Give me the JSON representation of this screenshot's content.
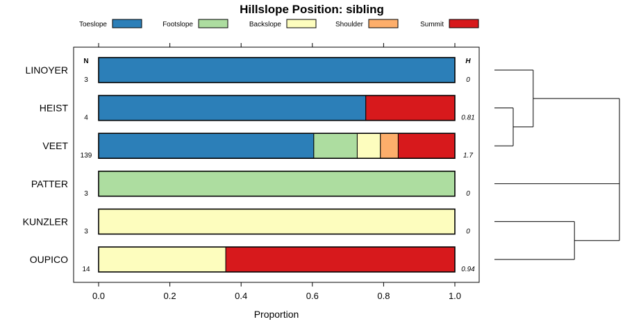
{
  "chart_data": {
    "type": "bar",
    "subtype": "stacked-horizontal-proportion",
    "title": "Hillslope Position: sibling",
    "xlabel": "Proportion",
    "ylabel": "",
    "xlim": [
      0,
      1
    ],
    "xticks": [
      "0.0",
      "0.2",
      "0.4",
      "0.6",
      "0.8",
      "1.0"
    ],
    "legend": [
      {
        "name": "Toeslope",
        "color": "#2c7fb8"
      },
      {
        "name": "Footslope",
        "color": "#addda0"
      },
      {
        "name": "Backslope",
        "color": "#fdfdbe"
      },
      {
        "name": "Shoulder",
        "color": "#fdae6b"
      },
      {
        "name": "Summit",
        "color": "#d7191c"
      }
    ],
    "column_headers": {
      "n": "N",
      "h": "H"
    },
    "categories": [
      "LINOYER",
      "HEIST",
      "VEET",
      "PATTER",
      "KUNZLER",
      "OUPICO"
    ],
    "n": [
      "3",
      "4",
      "139",
      "3",
      "3",
      "14"
    ],
    "h": [
      "0",
      "0.81",
      "1.7",
      "0",
      "0",
      "0.94"
    ],
    "series": [
      {
        "name": "Toeslope",
        "values": [
          1.0,
          0.75,
          0.604,
          0,
          0,
          0
        ]
      },
      {
        "name": "Footslope",
        "values": [
          0,
          0,
          0.122,
          1.0,
          0,
          0
        ]
      },
      {
        "name": "Backslope",
        "values": [
          0,
          0,
          0.065,
          0,
          1.0,
          0.357
        ]
      },
      {
        "name": "Shoulder",
        "values": [
          0,
          0,
          0.05,
          0,
          0,
          0
        ]
      },
      {
        "name": "Summit",
        "values": [
          0,
          0.25,
          0.159,
          0,
          0,
          0.643
        ]
      }
    ],
    "dendrogram": {
      "description": "hierarchical clustering of rows",
      "merges": [
        {
          "left": "HEIST",
          "right": "VEET",
          "height": 0.15
        },
        {
          "left": "LINOYER",
          "right": "HEIST+VEET",
          "height": 0.31
        },
        {
          "left": "KUNZLER",
          "right": "OUPICO",
          "height": 0.64
        },
        {
          "left": "PATTER",
          "right": "KUNZLER+OUPICO",
          "height": 1.0
        },
        {
          "left": "LINOYER+HEIST+VEET",
          "right": "PATTER+KUNZLER+OUPICO",
          "height": 1.0
        }
      ]
    }
  }
}
